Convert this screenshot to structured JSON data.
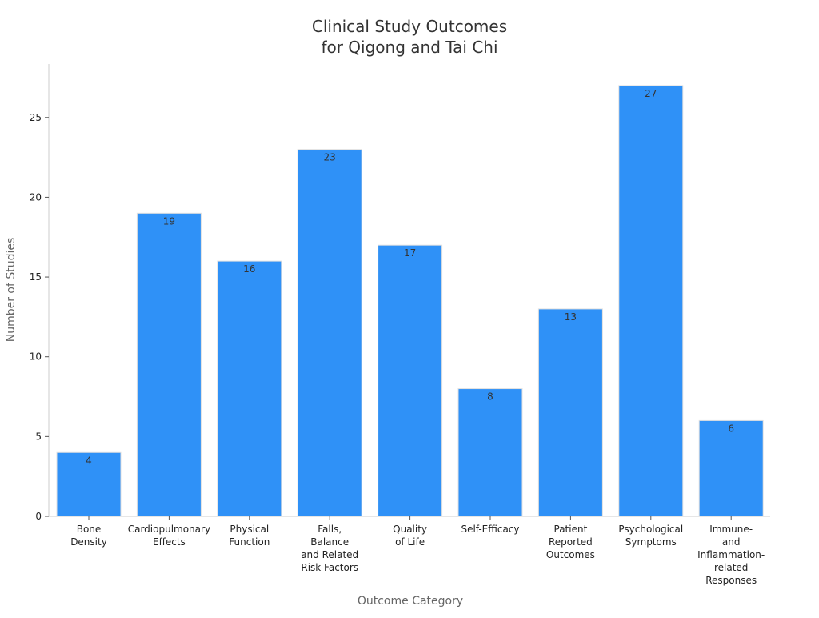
{
  "chart_data": {
    "type": "bar",
    "title_lines": [
      "Clinical Study Outcomes",
      "for Qigong and Tai Chi"
    ],
    "xlabel": "Outcome Category",
    "ylabel": "Number of Studies",
    "categories": [
      [
        "Bone",
        "Density"
      ],
      [
        "Cardiopulmonary",
        "Effects"
      ],
      [
        "Physical",
        "Function"
      ],
      [
        "Falls,",
        "Balance",
        "and Related",
        "Risk Factors"
      ],
      [
        "Quality",
        "of Life"
      ],
      [
        "Self-Efficacy"
      ],
      [
        "Patient",
        "Reported",
        "Outcomes"
      ],
      [
        "Psychological",
        "Symptoms"
      ],
      [
        "Immune-",
        "and",
        "Inflammation-",
        "related",
        "Responses"
      ]
    ],
    "values": [
      4,
      19,
      16,
      23,
      17,
      8,
      13,
      27,
      6
    ],
    "ylim": [
      0,
      28.35
    ],
    "yticks": [
      0,
      5,
      10,
      15,
      20,
      25
    ],
    "grid": false,
    "legend": "none",
    "bar_color": "#2f91f7",
    "bar_edge_color": "#e0e0e0"
  }
}
